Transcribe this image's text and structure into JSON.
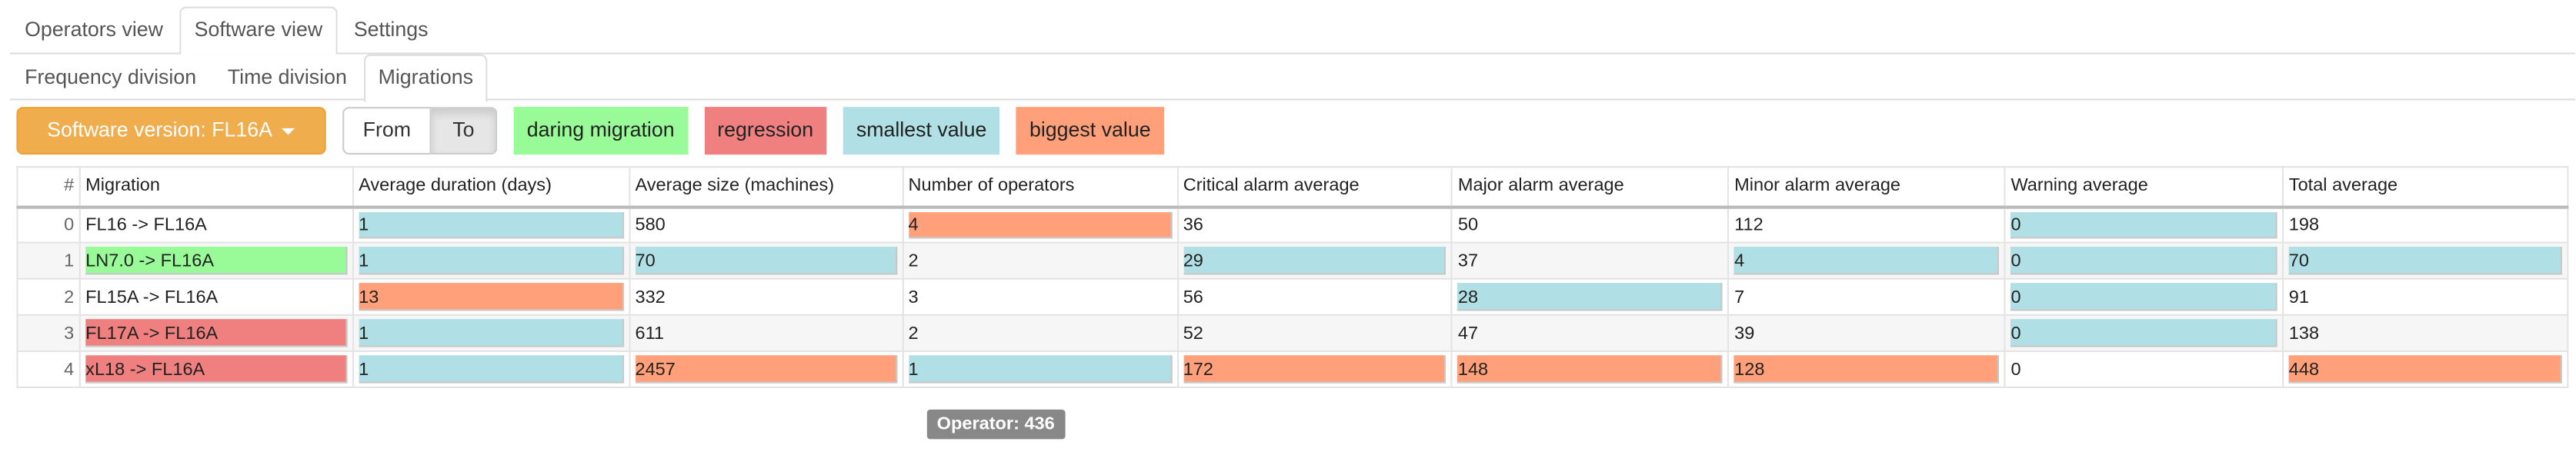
{
  "tabs_top": [
    {
      "label": "Operators view",
      "active": false
    },
    {
      "label": "Software view",
      "active": true
    },
    {
      "label": "Settings",
      "active": false
    }
  ],
  "tabs_sub": [
    {
      "label": "Frequency division",
      "active": false
    },
    {
      "label": "Time division",
      "active": false
    },
    {
      "label": "Migrations",
      "active": true
    }
  ],
  "toolbar": {
    "version_label": "Software version: FL16A",
    "from_label": "From",
    "to_label": "To"
  },
  "legend": [
    {
      "label": "daring migration",
      "color": "#98fb98"
    },
    {
      "label": "regression",
      "color": "#f08080"
    },
    {
      "label": "smallest value",
      "color": "#b0e0e6"
    },
    {
      "label": "biggest value",
      "color": "#ffa07a"
    }
  ],
  "table": {
    "headers": [
      "#",
      "Migration",
      "Average duration (days)",
      "Average size (machines)",
      "Number of operators",
      "Critical alarm average",
      "Major alarm average",
      "Minor alarm average",
      "Warning average",
      "Total average"
    ],
    "rows": [
      {
        "idx": "0",
        "migration": "FL16 -> FL16A",
        "mig_class": "",
        "cells": [
          [
            "1",
            "blue"
          ],
          [
            "580",
            ""
          ],
          [
            "4",
            "orange"
          ],
          [
            "36",
            ""
          ],
          [
            "50",
            ""
          ],
          [
            "112",
            ""
          ],
          [
            "0",
            "blue"
          ],
          [
            "198",
            ""
          ]
        ]
      },
      {
        "idx": "1",
        "migration": "LN7.0 -> FL16A",
        "mig_class": "green",
        "cells": [
          [
            "1",
            "blue"
          ],
          [
            "70",
            "blue"
          ],
          [
            "2",
            ""
          ],
          [
            "29",
            "blue"
          ],
          [
            "37",
            ""
          ],
          [
            "4",
            "blue"
          ],
          [
            "0",
            "blue"
          ],
          [
            "70",
            "blue"
          ]
        ]
      },
      {
        "idx": "2",
        "migration": "FL15A -> FL16A",
        "mig_class": "",
        "cells": [
          [
            "13",
            "orange"
          ],
          [
            "332",
            ""
          ],
          [
            "3",
            ""
          ],
          [
            "56",
            ""
          ],
          [
            "28",
            "blue"
          ],
          [
            "7",
            ""
          ],
          [
            "0",
            "blue"
          ],
          [
            "91",
            ""
          ]
        ]
      },
      {
        "idx": "3",
        "migration": "FL17A -> FL16A",
        "mig_class": "red",
        "cells": [
          [
            "1",
            "blue"
          ],
          [
            "611",
            ""
          ],
          [
            "2",
            ""
          ],
          [
            "52",
            ""
          ],
          [
            "47",
            ""
          ],
          [
            "39",
            ""
          ],
          [
            "0",
            "blue"
          ],
          [
            "138",
            ""
          ]
        ]
      },
      {
        "idx": "4",
        "migration": "xL18 -> FL16A",
        "mig_class": "red",
        "cells": [
          [
            "1",
            "blue"
          ],
          [
            "2457",
            "orange"
          ],
          [
            "1",
            "blue"
          ],
          [
            "172",
            "orange"
          ],
          [
            "148",
            "orange"
          ],
          [
            "128",
            "orange"
          ],
          [
            "0",
            ""
          ],
          [
            "448",
            "orange"
          ]
        ]
      }
    ]
  },
  "tooltip": "Operator: 436"
}
